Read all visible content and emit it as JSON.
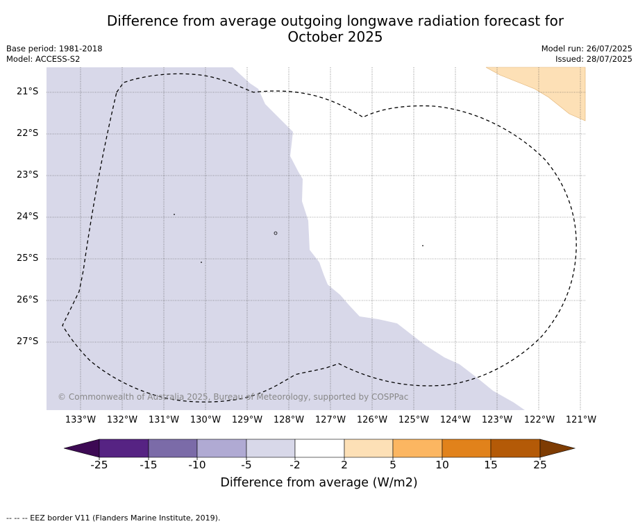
{
  "title_line1": "Difference from average outgoing longwave radiation forecast for",
  "title_line2": "October 2025",
  "base_period": "Base period: 1981-2018",
  "model": "Model: ACCESS-S2",
  "model_run": "Model run: 26/07/2025",
  "issued": "Issued: 28/07/2025",
  "copyright": "© Commonwealth of Australia 2025, Bureau of Meteorology, supported by COSPPac",
  "latitudes": [
    "21°S",
    "22°S",
    "23°S",
    "24°S",
    "25°S",
    "26°S",
    "27°S"
  ],
  "longitudes": [
    "133°W",
    "132°W",
    "131°W",
    "130°W",
    "129°W",
    "128°W",
    "127°W",
    "126°W",
    "125°W",
    "124°W",
    "123°W",
    "122°W",
    "121°W"
  ],
  "colorbar": {
    "title": "Difference from average (W/m2)",
    "ticks": [
      "-25",
      "-15",
      "-10",
      "-5",
      "-2",
      "2",
      "5",
      "10",
      "15",
      "25"
    ],
    "colors": [
      "#3d0a54",
      "#562383",
      "#7b6ba8",
      "#b0aad3",
      "#d8d8e9",
      "#ffffff",
      "#fde0b6",
      "#fcb661",
      "#e1821b",
      "#b45a07",
      "#7e3c03"
    ]
  },
  "footnote": "-- -- -- EEZ border V11 (Flanders Marine Institute, 2019)."
}
